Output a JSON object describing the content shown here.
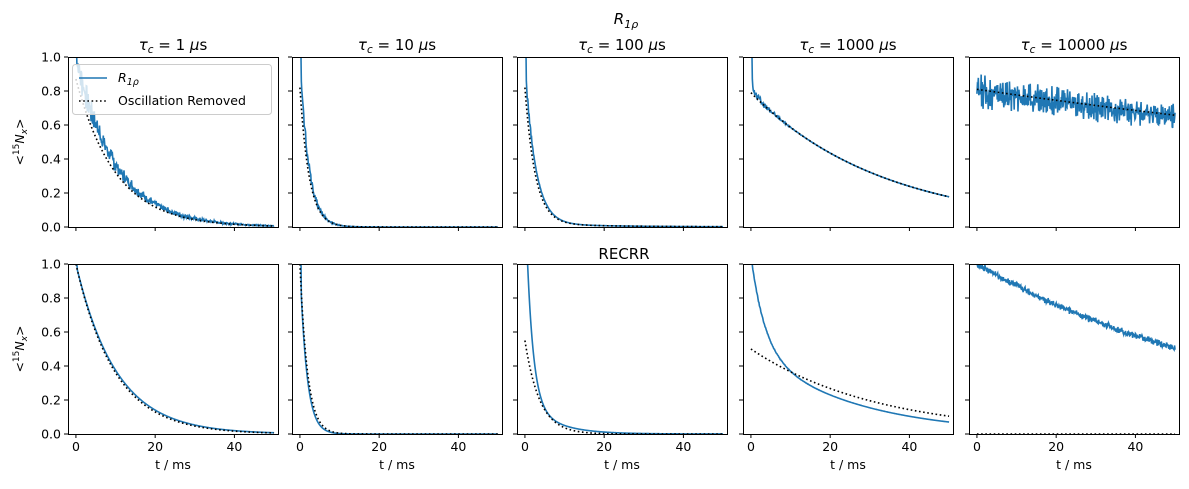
{
  "chart_data": {
    "type": "line",
    "figure": {
      "width": 1189,
      "height": 489
    },
    "rows": [
      {
        "title_base": "R",
        "title_sub": "1ρ",
        "ylabel_base": "<",
        "ylabel_sup": "15",
        "ylabel_mid": "N",
        "ylabel_sub": "x",
        "ylabel_end": ">"
      },
      {
        "title": "RECRR",
        "ylabel_base": "<",
        "ylabel_sup": "15",
        "ylabel_mid": "N",
        "ylabel_sub": "x",
        "ylabel_end": ">"
      }
    ],
    "column_titles": [
      {
        "prefix": "τ",
        "sub": "c",
        "value": " = 1 ",
        "unit": "μs"
      },
      {
        "prefix": "τ",
        "sub": "c",
        "value": " = 10 ",
        "unit": "μs"
      },
      {
        "prefix": "τ",
        "sub": "c",
        "value": " = 100 ",
        "unit": "μs"
      },
      {
        "prefix": "τ",
        "sub": "c",
        "value": " = 1000 ",
        "unit": "μs"
      },
      {
        "prefix": "τ",
        "sub": "c",
        "value": " = 10000 ",
        "unit": "μs"
      }
    ],
    "xlabel": "t / ms",
    "xlim": [
      -2,
      51
    ],
    "ylim": [
      0,
      1
    ],
    "xticks": [
      0,
      20,
      40
    ],
    "xtick_labels": [
      "0",
      "20",
      "40"
    ],
    "yticks": [
      0.0,
      0.2,
      0.4,
      0.6,
      0.8,
      1.0
    ],
    "ytick_labels": [
      "0.0",
      "0.2",
      "0.4",
      "0.6",
      "0.8",
      "1.0"
    ],
    "legend": {
      "location": "top-right of first panel",
      "entries": [
        {
          "label_base": "R",
          "label_sub": "1ρ",
          "style": "solid",
          "color": "#1f77b4"
        },
        {
          "label": "Oscillation Removed",
          "style": "dotted",
          "color": "#000000"
        }
      ]
    },
    "series_colors": {
      "signal": "#1f77b4",
      "fit": "#000000"
    },
    "panels": [
      {
        "row": 0,
        "col": 0,
        "signal": {
          "a0": 1.0,
          "tau": 10.0,
          "noise": 0.07,
          "noise_decay": 14,
          "start": 1.05
        },
        "fit": {
          "a0": 0.87,
          "tau": 10.0,
          "x_start": 0
        }
      },
      {
        "row": 0,
        "col": 1,
        "signal": {
          "a0": 1.0,
          "tau": 2.2,
          "noise": 0.06,
          "noise_decay": 3,
          "start": 1.1
        },
        "fit": {
          "a0": 0.82,
          "tau": 2.3,
          "x_start": 0
        }
      },
      {
        "row": 0,
        "col": 2,
        "signal": {
          "a0": 0.95,
          "tau": 2.6,
          "noise": 0.03,
          "noise_decay": 1.5,
          "start": 1.1,
          "slow_a": 0.02,
          "slow_tau": 20
        },
        "fit": {
          "a0": 0.8,
          "tau": 2.6,
          "x_start": 0,
          "slow_a": 0.02,
          "slow_tau": 20
        }
      },
      {
        "row": 0,
        "col": 3,
        "signal": {
          "a0": 0.79,
          "tau": 33.5,
          "noise": 0.03,
          "noise_decay": 4,
          "start": 1.05,
          "fast_a": 0.12,
          "fast_tau": 0.6
        },
        "fit": {
          "a0": 0.79,
          "tau": 33.5,
          "x_start": 0
        }
      },
      {
        "row": 0,
        "col": 4,
        "signal": {
          "a0": 0.8,
          "tau": 240,
          "noise": 0.07,
          "noise_decay": 200,
          "start": 0.8
        },
        "fit": {
          "a0": 0.81,
          "tau": 240,
          "x_start": 0
        }
      },
      {
        "row": 1,
        "col": 0,
        "signal": {
          "a0": 1.0,
          "tau": 10.2,
          "noise": 0.0,
          "noise_decay": 1,
          "start": 1.0
        },
        "fit": {
          "a0": 1.0,
          "tau": 9.8,
          "x_start": 0
        }
      },
      {
        "row": 1,
        "col": 1,
        "signal": {
          "a0": 1.0,
          "tau": 1.7,
          "noise": 0.0,
          "noise_decay": 1,
          "start": 1.1
        },
        "fit": {
          "a0": 1.0,
          "tau": 1.9,
          "x_start": 0
        }
      },
      {
        "row": 1,
        "col": 2,
        "signal": {
          "a0": 1.25,
          "tau": 1.6,
          "noise": 0.0,
          "noise_decay": 1,
          "start": 1.3,
          "slow_a": 0.2,
          "slow_tau": 7
        },
        "fit": {
          "a0": 0.55,
          "tau": 3.7,
          "x_start": 0
        }
      },
      {
        "row": 1,
        "col": 3,
        "signal": {
          "a0": 0.5,
          "tau": 25.5,
          "noise": 0.005,
          "noise_decay": 8,
          "start": 1.05,
          "fast_a": 0.55,
          "fast_tau": 3.5
        },
        "fit": {
          "a0": 0.5,
          "tau": 32.0,
          "x_start": 0
        }
      },
      {
        "row": 1,
        "col": 4,
        "signal": {
          "a0": 1.0,
          "tau": 73,
          "noise": 0.015,
          "noise_decay": 1000,
          "start": 1.0
        },
        "fit": {
          "constant": 0.0,
          "x_start": 0
        }
      }
    ]
  }
}
